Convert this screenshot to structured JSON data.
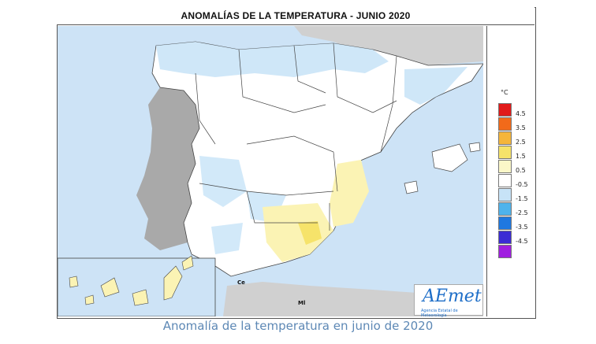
{
  "title": "ANOMALÍAS DE LA TEMPERATURA - JUNIO 2020",
  "caption": "Anomalía de la temperatura en junio de 2020",
  "legend": {
    "unit": "°C",
    "bins": [
      {
        "label": "4.5",
        "color": "#e11a1a"
      },
      {
        "label": "3.5",
        "color": "#f26a1a"
      },
      {
        "label": "2.5",
        "color": "#f5b53a"
      },
      {
        "label": "1.5",
        "color": "#f6e36a"
      },
      {
        "label": "0.5",
        "color": "#fbf7c8"
      },
      {
        "label": "-0.5",
        "color": "#ffffff"
      },
      {
        "label": "-1.5",
        "color": "#c7e3f7"
      },
      {
        "label": "-2.5",
        "color": "#4fb3ec"
      },
      {
        "label": "-3.5",
        "color": "#1f78e0"
      },
      {
        "label": "-4.5",
        "color": "#3b2bd4"
      },
      {
        "label": "",
        "color": "#a01ee0"
      }
    ]
  },
  "cities": {
    "ceuta": "Ce",
    "melilla": "Ml"
  },
  "logo": {
    "word": "AEmet",
    "sub": "Agencia Estatal de Meteorología"
  },
  "colors": {
    "sea": "#cde3f6",
    "portugal": "#a9a9a9",
    "france": "#d0d0d0",
    "land": "#ffffff",
    "cool": "#c7e3f7",
    "warm": "#fbf3b4"
  }
}
